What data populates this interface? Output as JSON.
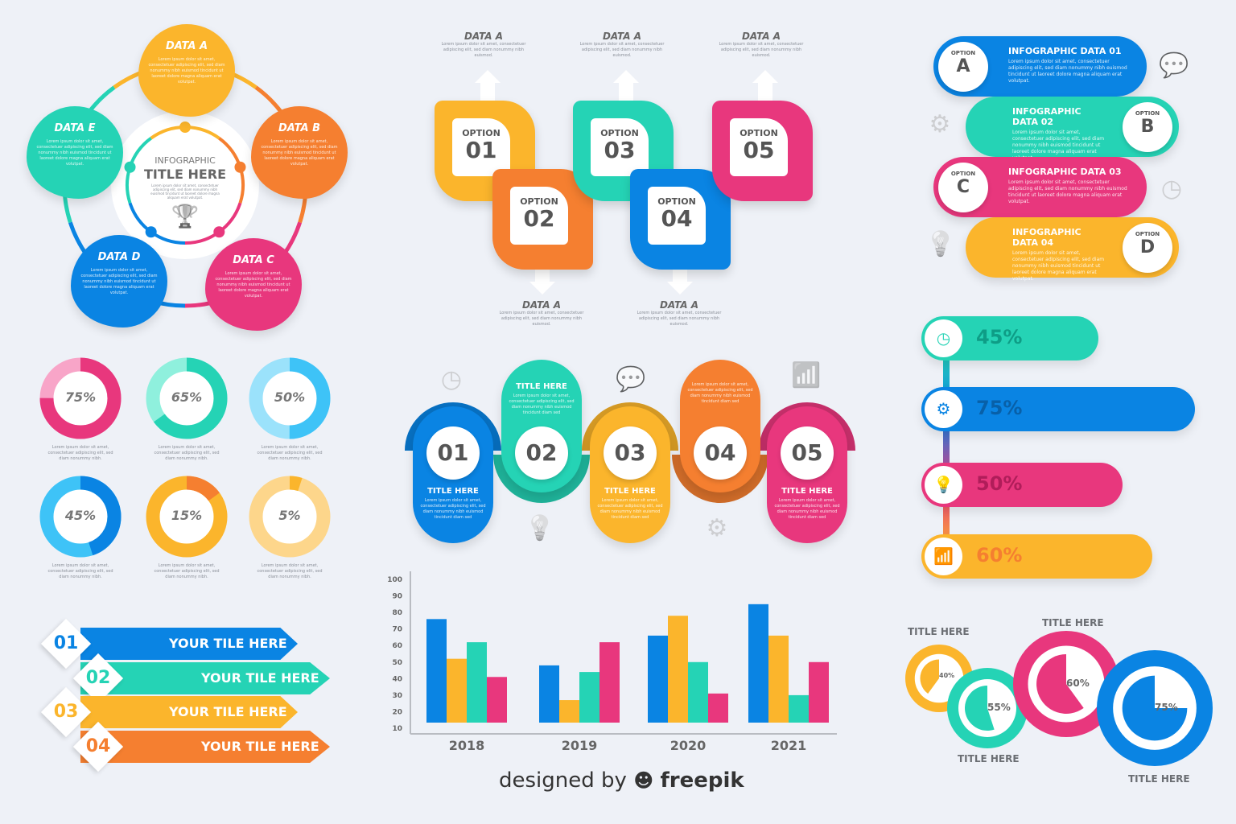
{
  "colors": {
    "yellow": "#fbb52c",
    "orange": "#f57f30",
    "pink": "#e8377d",
    "blue": "#0a84e3",
    "teal": "#25d3b5",
    "lightblue": "#3ec3f7",
    "background": "#eef1f7"
  },
  "lorem": "Lorem ipsum dolor sit amet, consectetuer adipiscing elit, sed diam nonummy nibh euismod tincidunt ut laoreet dolore magna aliquam erat volutpat.",
  "lorem_short": "Lorem ipsum dolor sit amet, consectetuer adipiscing elit, sed diam nonummy nibh euismod.",
  "cycle": {
    "title_small": "INFOGRAPHIC",
    "title": "TITLE HERE",
    "icon": "trophy-icon",
    "items": [
      {
        "label": "DATA A"
      },
      {
        "label": "DATA B"
      },
      {
        "label": "DATA C"
      },
      {
        "label": "DATA D"
      },
      {
        "label": "DATA E"
      }
    ]
  },
  "options": {
    "option_word": "OPTION",
    "data_label": "DATA A",
    "items": [
      {
        "num": "01"
      },
      {
        "num": "02"
      },
      {
        "num": "03"
      },
      {
        "num": "04"
      },
      {
        "num": "05"
      }
    ]
  },
  "info_pills": [
    {
      "title": "INFOGRAPHIC DATA 01",
      "option": "OPTION",
      "letter": "A"
    },
    {
      "title": "INFOGRAPHIC DATA 02",
      "option": "OPTION",
      "letter": "B"
    },
    {
      "title": "INFOGRAPHIC DATA 03",
      "option": "OPTION",
      "letter": "C"
    },
    {
      "title": "INFOGRAPHIC DATA 04",
      "option": "OPTION",
      "letter": "D"
    }
  ],
  "side_icons": [
    "chat-icon",
    "gear-icon",
    "clock-icon",
    "lightbulb-icon"
  ],
  "donuts": [
    {
      "value": 75,
      "label": "75%"
    },
    {
      "value": 65,
      "label": "65%"
    },
    {
      "value": 50,
      "label": "50%"
    },
    {
      "value": 45,
      "label": "45%"
    },
    {
      "value": 15,
      "label": "15%"
    },
    {
      "value": 5,
      "label": "5%"
    }
  ],
  "donut_caption": "Lorem ipsum dolor sit amet, consectetuer adipiscing elit, sed diam nonummy nibh.",
  "wave": {
    "title": "TITLE HERE",
    "text": "Lorem ipsum dolor sit amet, consectetuer adipiscing elit, sed diam nonummy nibh euismod tincidunt diam sed",
    "items": [
      {
        "num": "01"
      },
      {
        "num": "02"
      },
      {
        "num": "03"
      },
      {
        "num": "04"
      },
      {
        "num": "05"
      }
    ],
    "icons": [
      "clock-icon",
      "chat-icon",
      "chart-icon",
      "lightbulb-icon",
      "gear-icon"
    ]
  },
  "progress": [
    {
      "value": 45,
      "label": "45%",
      "icon": "clock-icon"
    },
    {
      "value": 75,
      "label": "75%",
      "icon": "gear-icon"
    },
    {
      "value": 50,
      "label": "50%",
      "icon": "lightbulb-icon"
    },
    {
      "value": 60,
      "label": "60%",
      "icon": "chart-icon"
    }
  ],
  "ribbons": [
    {
      "num": "01",
      "label": "YOUR TILE HERE"
    },
    {
      "num": "02",
      "label": "YOUR TILE HERE"
    },
    {
      "num": "03",
      "label": "YOUR TILE HERE"
    },
    {
      "num": "04",
      "label": "YOUR TILE HERE"
    }
  ],
  "chart_data": {
    "type": "bar",
    "categories": [
      "2018",
      "2019",
      "2020",
      "2021"
    ],
    "series": [
      {
        "name": "blue",
        "values": [
          76,
          48,
          66,
          85
        ]
      },
      {
        "name": "yellow",
        "values": [
          52,
          27,
          78,
          66
        ]
      },
      {
        "name": "teal",
        "values": [
          62,
          44,
          50,
          30
        ]
      },
      {
        "name": "pink",
        "values": [
          41,
          62,
          31,
          50
        ]
      }
    ],
    "yticks": [
      10,
      20,
      30,
      40,
      50,
      60,
      70,
      80,
      90,
      100
    ],
    "ylim": [
      10,
      100
    ],
    "title": "",
    "xlabel": "",
    "ylabel": ""
  },
  "pies": [
    {
      "value": 40,
      "label": "40%",
      "title": "TITLE HERE"
    },
    {
      "value": 55,
      "label": "55%",
      "title": "TITLE HERE"
    },
    {
      "value": 60,
      "label": "60%",
      "title": "TITLE HERE"
    },
    {
      "value": 75,
      "label": "75%",
      "title": "TITLE HERE"
    }
  ],
  "footer": {
    "text": "designed by",
    "brand": "freepik"
  }
}
